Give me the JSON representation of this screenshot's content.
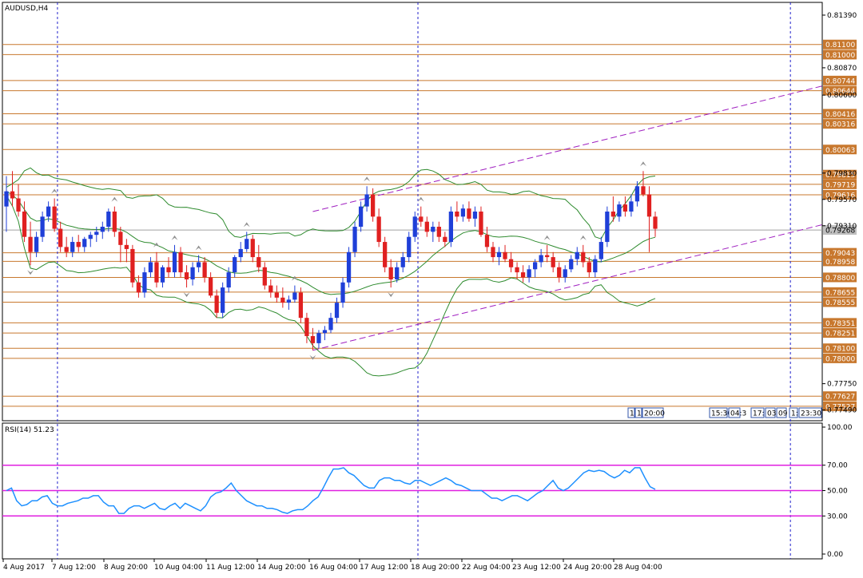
{
  "chart_data": [
    {
      "type": "candlestick",
      "title": "AUDUSD,H4",
      "symbol": "AUDUSD",
      "timeframe": "H4",
      "ylim": [
        0.774,
        0.815
      ],
      "price_ticks": [
        "0.81390",
        "0.80870",
        "0.80600",
        "0.79830",
        "0.79570",
        "0.79310",
        "0.77750",
        "0.77490"
      ],
      "current_price": "0.79268",
      "levels": [
        "0.81100",
        "0.81000",
        "0.80744",
        "0.80644",
        "0.80416",
        "0.80316",
        "0.80063",
        "0.79815",
        "0.79719",
        "0.79616",
        "0.79043",
        "0.78958",
        "0.78800",
        "0.78655",
        "0.78555",
        "0.78351",
        "0.78251",
        "0.78100",
        "0.78000",
        "0.77627",
        "0.77527"
      ],
      "x_labels": [
        "4 Aug 2017",
        "7 Aug 12:00",
        "8 Aug 20:00",
        "10 Aug 04:00",
        "11 Aug 12:00",
        "14 Aug 20:00",
        "16 Aug 04:00",
        "17 Aug 12:00",
        "18 Aug 20:00",
        "22 Aug 04:00",
        "23 Aug 12:00",
        "24 Aug 20:00",
        "28 Aug 04:00"
      ],
      "time_badges": [
        "1",
        "1",
        "20:00",
        "15:30",
        "04:3",
        "17:",
        "03",
        "09",
        "1:",
        "23:30"
      ],
      "candles": [
        [
          0.795,
          0.798,
          0.7925,
          0.7965
        ],
        [
          0.7965,
          0.7985,
          0.795,
          0.7958
        ],
        [
          0.7958,
          0.7972,
          0.794,
          0.7945
        ],
        [
          0.7945,
          0.7955,
          0.7915,
          0.792
        ],
        [
          0.792,
          0.7935,
          0.7892,
          0.7905
        ],
        [
          0.7905,
          0.7925,
          0.79,
          0.792
        ],
        [
          0.792,
          0.7945,
          0.7915,
          0.794
        ],
        [
          0.794,
          0.7955,
          0.7935,
          0.795
        ],
        [
          0.795,
          0.7958,
          0.7925,
          0.7928
        ],
        [
          0.7928,
          0.7935,
          0.7905,
          0.791
        ],
        [
          0.791,
          0.792,
          0.79,
          0.7905
        ],
        [
          0.7905,
          0.792,
          0.79,
          0.7915
        ],
        [
          0.7915,
          0.7922,
          0.7905,
          0.791
        ],
        [
          0.791,
          0.792,
          0.7905,
          0.7918
        ],
        [
          0.7918,
          0.7925,
          0.791,
          0.7922
        ],
        [
          0.7922,
          0.793,
          0.7915,
          0.7925
        ],
        [
          0.7925,
          0.7935,
          0.7918,
          0.793
        ],
        [
          0.793,
          0.7948,
          0.7925,
          0.7945
        ],
        [
          0.7945,
          0.795,
          0.792,
          0.7925
        ],
        [
          0.7925,
          0.793,
          0.7895,
          0.7912
        ],
        [
          0.7912,
          0.7918,
          0.7895,
          0.7908
        ],
        [
          0.7908,
          0.7912,
          0.787,
          0.7875
        ],
        [
          0.7875,
          0.7882,
          0.786,
          0.7865
        ],
        [
          0.7865,
          0.789,
          0.786,
          0.7885
        ],
        [
          0.7885,
          0.79,
          0.788,
          0.7895
        ],
        [
          0.7895,
          0.7905,
          0.787,
          0.7875
        ],
        [
          0.7875,
          0.7892,
          0.787,
          0.789
        ],
        [
          0.789,
          0.79,
          0.788,
          0.7885
        ],
        [
          0.7885,
          0.7912,
          0.788,
          0.7905
        ],
        [
          0.7905,
          0.791,
          0.788,
          0.7885
        ],
        [
          0.7885,
          0.7892,
          0.787,
          0.7878
        ],
        [
          0.7878,
          0.7895,
          0.7872,
          0.789
        ],
        [
          0.789,
          0.7902,
          0.7885,
          0.7895
        ],
        [
          0.7895,
          0.79,
          0.7875,
          0.788
        ],
        [
          0.788,
          0.7885,
          0.786,
          0.7862
        ],
        [
          0.7862,
          0.7868,
          0.784,
          0.7845
        ],
        [
          0.7845,
          0.7875,
          0.784,
          0.787
        ],
        [
          0.787,
          0.789,
          0.7865,
          0.7885
        ],
        [
          0.7885,
          0.7902,
          0.788,
          0.79
        ],
        [
          0.79,
          0.7915,
          0.7895,
          0.7908
        ],
        [
          0.7908,
          0.7925,
          0.7905,
          0.7918
        ],
        [
          0.7918,
          0.7922,
          0.7895,
          0.79
        ],
        [
          0.79,
          0.7912,
          0.7885,
          0.789
        ],
        [
          0.789,
          0.7895,
          0.7868,
          0.7872
        ],
        [
          0.7872,
          0.7878,
          0.786,
          0.7865
        ],
        [
          0.7865,
          0.7872,
          0.7855,
          0.786
        ],
        [
          0.786,
          0.787,
          0.785,
          0.7855
        ],
        [
          0.7855,
          0.7862,
          0.7848,
          0.7858
        ],
        [
          0.7858,
          0.7872,
          0.7855,
          0.7865
        ],
        [
          0.7865,
          0.787,
          0.7835,
          0.784
        ],
        [
          0.784,
          0.7845,
          0.7815,
          0.7822
        ],
        [
          0.7822,
          0.783,
          0.7808,
          0.7815
        ],
        [
          0.7815,
          0.7828,
          0.781,
          0.7825
        ],
        [
          0.7825,
          0.7832,
          0.7818,
          0.7828
        ],
        [
          0.7828,
          0.7845,
          0.7825,
          0.784
        ],
        [
          0.784,
          0.786,
          0.7835,
          0.7855
        ],
        [
          0.7855,
          0.788,
          0.785,
          0.7875
        ],
        [
          0.7875,
          0.791,
          0.787,
          0.7905
        ],
        [
          0.7905,
          0.7935,
          0.79,
          0.793
        ],
        [
          0.793,
          0.7955,
          0.7925,
          0.795
        ],
        [
          0.795,
          0.797,
          0.7945,
          0.7962
        ],
        [
          0.7962,
          0.7968,
          0.7935,
          0.794
        ],
        [
          0.794,
          0.7948,
          0.791,
          0.7915
        ],
        [
          0.7915,
          0.792,
          0.7885,
          0.789
        ],
        [
          0.789,
          0.7898,
          0.787,
          0.7878
        ],
        [
          0.7878,
          0.7895,
          0.7875,
          0.789
        ],
        [
          0.789,
          0.7905,
          0.7885,
          0.79
        ],
        [
          0.79,
          0.7925,
          0.7895,
          0.792
        ],
        [
          0.792,
          0.7945,
          0.7915,
          0.794
        ],
        [
          0.794,
          0.795,
          0.793,
          0.7935
        ],
        [
          0.7935,
          0.794,
          0.792,
          0.7925
        ],
        [
          0.7925,
          0.7935,
          0.7915,
          0.793
        ],
        [
          0.793,
          0.7935,
          0.7915,
          0.792
        ],
        [
          0.792,
          0.7925,
          0.791,
          0.7915
        ],
        [
          0.7915,
          0.795,
          0.791,
          0.7945
        ],
        [
          0.7945,
          0.7955,
          0.7935,
          0.794
        ],
        [
          0.794,
          0.7952,
          0.7935,
          0.7948
        ],
        [
          0.7948,
          0.7955,
          0.7935,
          0.7938
        ],
        [
          0.7938,
          0.795,
          0.793,
          0.7945
        ],
        [
          0.7945,
          0.795,
          0.792,
          0.7922
        ],
        [
          0.7922,
          0.793,
          0.7905,
          0.791
        ],
        [
          0.791,
          0.7915,
          0.7895,
          0.79
        ],
        [
          0.79,
          0.791,
          0.7892,
          0.7905
        ],
        [
          0.7905,
          0.7912,
          0.7895,
          0.7898
        ],
        [
          0.7898,
          0.7905,
          0.7885,
          0.789
        ],
        [
          0.789,
          0.7895,
          0.7878,
          0.7885
        ],
        [
          0.7885,
          0.7892,
          0.7875,
          0.788
        ],
        [
          0.788,
          0.7892,
          0.7875,
          0.7888
        ],
        [
          0.7888,
          0.7898,
          0.788,
          0.7895
        ],
        [
          0.7895,
          0.7908,
          0.789,
          0.7902
        ],
        [
          0.7902,
          0.7912,
          0.7895,
          0.79
        ],
        [
          0.79,
          0.7905,
          0.7885,
          0.789
        ],
        [
          0.789,
          0.7895,
          0.7875,
          0.788
        ],
        [
          0.788,
          0.7892,
          0.7875,
          0.7888
        ],
        [
          0.7888,
          0.7902,
          0.7885,
          0.7898
        ],
        [
          0.7898,
          0.791,
          0.7892,
          0.7905
        ],
        [
          0.7905,
          0.7912,
          0.789,
          0.7895
        ],
        [
          0.7895,
          0.79,
          0.788,
          0.7885
        ],
        [
          0.7885,
          0.7902,
          0.788,
          0.7898
        ],
        [
          0.7898,
          0.792,
          0.7895,
          0.7915
        ],
        [
          0.7915,
          0.795,
          0.791,
          0.7945
        ],
        [
          0.7945,
          0.796,
          0.7935,
          0.794
        ],
        [
          0.794,
          0.7955,
          0.7935,
          0.7952
        ],
        [
          0.7952,
          0.796,
          0.794,
          0.7945
        ],
        [
          0.7945,
          0.7962,
          0.794,
          0.7955
        ],
        [
          0.7955,
          0.7975,
          0.795,
          0.797
        ],
        [
          0.797,
          0.7985,
          0.796,
          0.7962
        ],
        [
          0.7962,
          0.797,
          0.7905,
          0.794
        ],
        [
          0.794,
          0.7945,
          0.792,
          0.7928
        ]
      ]
    },
    {
      "type": "line",
      "title": "RSI(14) 51.23",
      "name": "RSI(14)",
      "value": "51.23",
      "ylim": [
        0,
        100
      ],
      "y_ticks": [
        "100.00",
        "70.00",
        "50.00",
        "30.00",
        "0.00"
      ],
      "levels": [
        70,
        50,
        30
      ],
      "series": [
        {
          "values": [
            50,
            52,
            42,
            38,
            39,
            42,
            42,
            45,
            46,
            40,
            38,
            38,
            40,
            41,
            42,
            44,
            44,
            46,
            46,
            41,
            38,
            38,
            32,
            32,
            36,
            38,
            38,
            36,
            38,
            40,
            36,
            35,
            38,
            40,
            36,
            40,
            38,
            36,
            34,
            38,
            45,
            48,
            49,
            52,
            56,
            50,
            46,
            42,
            40,
            38,
            38,
            36,
            36,
            35,
            33,
            32,
            34,
            35,
            35,
            38,
            42,
            45,
            52,
            60,
            67,
            67,
            68,
            64,
            62,
            58,
            54,
            52,
            52,
            58,
            60,
            60,
            58,
            58,
            56,
            55,
            58,
            58,
            56,
            54,
            56,
            58,
            60,
            58,
            55,
            54,
            52,
            50,
            50,
            50,
            47,
            44,
            44,
            42,
            44,
            46,
            46,
            44,
            42,
            45,
            48,
            50,
            54,
            58,
            52,
            50,
            52,
            56,
            60,
            64,
            66,
            65,
            66,
            65,
            62,
            60,
            62,
            66,
            64,
            68,
            68,
            60,
            53,
            51
          ]
        }
      ]
    }
  ]
}
